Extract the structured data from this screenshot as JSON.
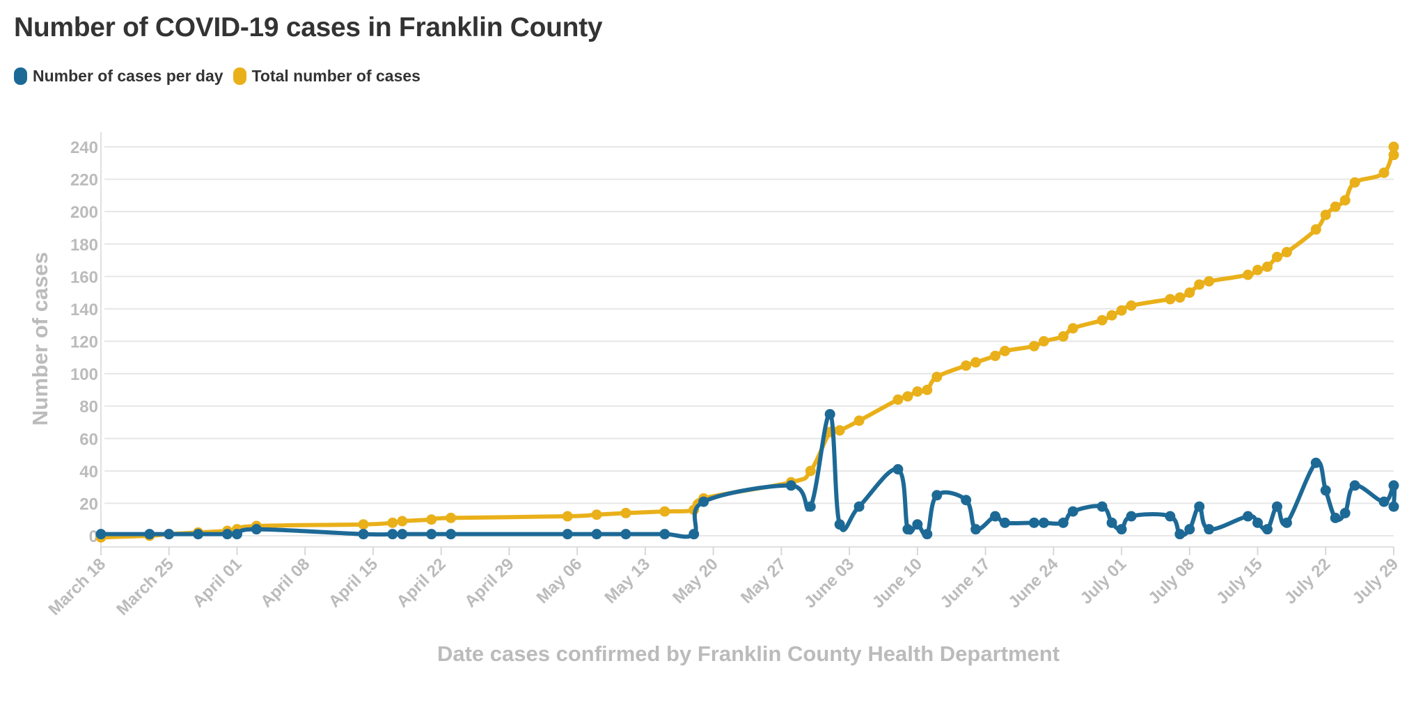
{
  "chart_data": {
    "type": "line",
    "title": "Number of COVID-19 cases in Franklin County",
    "xlabel": "Date cases confirmed by Franklin County Health Department",
    "ylabel": "Number of cases",
    "ylim": [
      0,
      240
    ],
    "yticks": [
      0,
      20,
      40,
      60,
      80,
      100,
      120,
      140,
      160,
      180,
      200,
      220,
      240
    ],
    "xlim": [
      "2020-03-18",
      "2020-07-29"
    ],
    "xticks": [
      {
        "date": "2020-03-18",
        "label": "March 18"
      },
      {
        "date": "2020-03-25",
        "label": "March 25"
      },
      {
        "date": "2020-04-01",
        "label": "April 01"
      },
      {
        "date": "2020-04-08",
        "label": "April 08"
      },
      {
        "date": "2020-04-15",
        "label": "April 15"
      },
      {
        "date": "2020-04-22",
        "label": "April 22"
      },
      {
        "date": "2020-04-29",
        "label": "April 29"
      },
      {
        "date": "2020-05-06",
        "label": "May 06"
      },
      {
        "date": "2020-05-13",
        "label": "May 13"
      },
      {
        "date": "2020-05-20",
        "label": "May 20"
      },
      {
        "date": "2020-05-27",
        "label": "May 27"
      },
      {
        "date": "2020-06-03",
        "label": "June 03"
      },
      {
        "date": "2020-06-10",
        "label": "June 10"
      },
      {
        "date": "2020-06-17",
        "label": "June 17"
      },
      {
        "date": "2020-06-24",
        "label": "June 24"
      },
      {
        "date": "2020-07-01",
        "label": "July 01"
      },
      {
        "date": "2020-07-08",
        "label": "July 08"
      },
      {
        "date": "2020-07-15",
        "label": "July 15"
      },
      {
        "date": "2020-07-22",
        "label": "July 22"
      },
      {
        "date": "2020-07-29",
        "label": "July 29"
      }
    ],
    "grid": true,
    "legend_position": "top-left",
    "series": [
      {
        "name": "Number of cases per day",
        "color": "#1d6996",
        "points": [
          [
            "2020-03-18",
            1
          ],
          [
            "2020-03-23",
            1
          ],
          [
            "2020-03-25",
            1
          ],
          [
            "2020-03-28",
            1
          ],
          [
            "2020-03-31",
            1
          ],
          [
            "2020-04-01",
            1
          ],
          [
            "2020-04-03",
            4
          ],
          [
            "2020-04-14",
            1
          ],
          [
            "2020-04-17",
            1
          ],
          [
            "2020-04-18",
            1
          ],
          [
            "2020-04-21",
            1
          ],
          [
            "2020-04-23",
            1
          ],
          [
            "2020-05-05",
            1
          ],
          [
            "2020-05-08",
            1
          ],
          [
            "2020-05-11",
            1
          ],
          [
            "2020-05-15",
            1
          ],
          [
            "2020-05-18",
            1
          ],
          [
            "2020-05-19",
            21
          ],
          [
            "2020-05-28",
            31
          ],
          [
            "2020-05-30",
            18
          ],
          [
            "2020-06-01",
            75
          ],
          [
            "2020-06-02",
            7
          ],
          [
            "2020-06-04",
            18
          ],
          [
            "2020-06-08",
            41
          ],
          [
            "2020-06-09",
            4
          ],
          [
            "2020-06-10",
            7
          ],
          [
            "2020-06-11",
            1
          ],
          [
            "2020-06-12",
            25
          ],
          [
            "2020-06-15",
            22
          ],
          [
            "2020-06-16",
            4
          ],
          [
            "2020-06-18",
            12
          ],
          [
            "2020-06-19",
            8
          ],
          [
            "2020-06-22",
            8
          ],
          [
            "2020-06-23",
            8
          ],
          [
            "2020-06-25",
            8
          ],
          [
            "2020-06-26",
            15
          ],
          [
            "2020-06-29",
            18
          ],
          [
            "2020-06-30",
            8
          ],
          [
            "2020-07-01",
            4
          ],
          [
            "2020-07-02",
            12
          ],
          [
            "2020-07-06",
            12
          ],
          [
            "2020-07-07",
            1
          ],
          [
            "2020-07-08",
            4
          ],
          [
            "2020-07-09",
            18
          ],
          [
            "2020-07-10",
            4
          ],
          [
            "2020-07-14",
            12
          ],
          [
            "2020-07-15",
            8
          ],
          [
            "2020-07-16",
            4
          ],
          [
            "2020-07-17",
            18
          ],
          [
            "2020-07-18",
            8
          ],
          [
            "2020-07-21",
            45
          ],
          [
            "2020-07-22",
            28
          ],
          [
            "2020-07-23",
            11
          ],
          [
            "2020-07-24",
            14
          ],
          [
            "2020-07-25",
            31
          ],
          [
            "2020-07-28",
            21
          ],
          [
            "2020-07-29",
            31
          ],
          [
            "2020-07-29",
            18
          ]
        ]
      },
      {
        "name": "Total number of cases",
        "color": "#e9b01a",
        "points": [
          [
            "2020-03-18",
            -1
          ],
          [
            "2020-03-23",
            0
          ],
          [
            "2020-03-25",
            1
          ],
          [
            "2020-03-28",
            2
          ],
          [
            "2020-03-31",
            3
          ],
          [
            "2020-04-01",
            4
          ],
          [
            "2020-04-03",
            6
          ],
          [
            "2020-04-14",
            7
          ],
          [
            "2020-04-17",
            8
          ],
          [
            "2020-04-18",
            9
          ],
          [
            "2020-04-21",
            10
          ],
          [
            "2020-04-23",
            11
          ],
          [
            "2020-05-05",
            12
          ],
          [
            "2020-05-08",
            13
          ],
          [
            "2020-05-11",
            14
          ],
          [
            "2020-05-15",
            15
          ],
          [
            "2020-05-18",
            16
          ],
          [
            "2020-05-19",
            23
          ],
          [
            "2020-05-28",
            33
          ],
          [
            "2020-05-30",
            40
          ],
          [
            "2020-06-01",
            64
          ],
          [
            "2020-06-02",
            65
          ],
          [
            "2020-06-04",
            71
          ],
          [
            "2020-06-08",
            84
          ],
          [
            "2020-06-09",
            86
          ],
          [
            "2020-06-10",
            89
          ],
          [
            "2020-06-11",
            90
          ],
          [
            "2020-06-12",
            98
          ],
          [
            "2020-06-15",
            105
          ],
          [
            "2020-06-16",
            107
          ],
          [
            "2020-06-18",
            111
          ],
          [
            "2020-06-19",
            114
          ],
          [
            "2020-06-22",
            117
          ],
          [
            "2020-06-23",
            120
          ],
          [
            "2020-06-25",
            123
          ],
          [
            "2020-06-26",
            128
          ],
          [
            "2020-06-29",
            133
          ],
          [
            "2020-06-30",
            136
          ],
          [
            "2020-07-01",
            139
          ],
          [
            "2020-07-02",
            142
          ],
          [
            "2020-07-06",
            146
          ],
          [
            "2020-07-07",
            147
          ],
          [
            "2020-07-08",
            150
          ],
          [
            "2020-07-09",
            155
          ],
          [
            "2020-07-10",
            157
          ],
          [
            "2020-07-14",
            161
          ],
          [
            "2020-07-15",
            164
          ],
          [
            "2020-07-16",
            166
          ],
          [
            "2020-07-17",
            172
          ],
          [
            "2020-07-18",
            175
          ],
          [
            "2020-07-21",
            189
          ],
          [
            "2020-07-22",
            198
          ],
          [
            "2020-07-23",
            203
          ],
          [
            "2020-07-24",
            207
          ],
          [
            "2020-07-25",
            218
          ],
          [
            "2020-07-28",
            224
          ],
          [
            "2020-07-29",
            240
          ],
          [
            "2020-07-29",
            235
          ]
        ]
      }
    ]
  }
}
